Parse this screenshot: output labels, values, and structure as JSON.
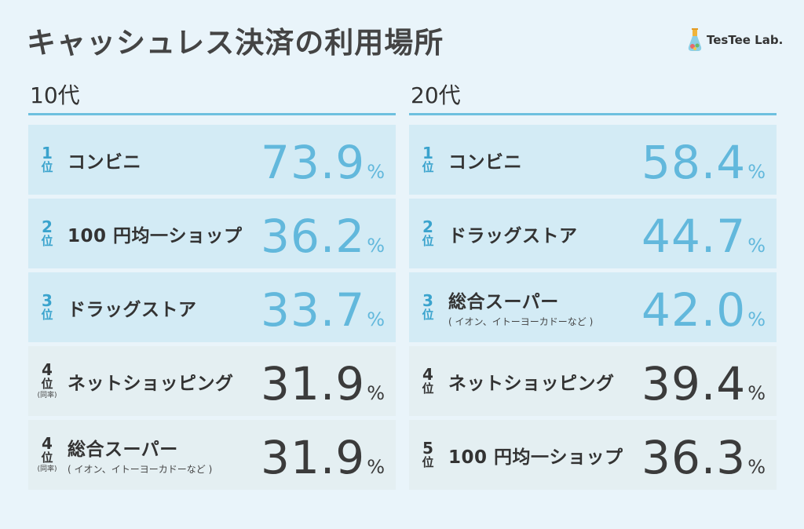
{
  "title": "キャッシュレス決済の利用場所",
  "logo": {
    "text": "TesTee Lab."
  },
  "chart_data": [
    {
      "type": "table",
      "title": "10代",
      "rank_suffix": "位",
      "unit": "%",
      "rows": [
        {
          "rank": "1",
          "label": "コンビニ",
          "value": "73.9",
          "highlight": true
        },
        {
          "rank": "2",
          "label": "100 円均一ショップ",
          "value": "36.2",
          "highlight": true
        },
        {
          "rank": "3",
          "label": "ドラッグストア",
          "value": "33.7",
          "highlight": true
        },
        {
          "rank": "4",
          "note": "(同率)",
          "label": "ネットショッピング",
          "value": "31.9",
          "highlight": false
        },
        {
          "rank": "4",
          "note": "(同率)",
          "label": "総合スーパー",
          "sublabel": "( イオン、イトーヨーカドーなど )",
          "value": "31.9",
          "highlight": false
        }
      ]
    },
    {
      "type": "table",
      "title": "20代",
      "rank_suffix": "位",
      "unit": "%",
      "rows": [
        {
          "rank": "1",
          "label": "コンビニ",
          "value": "58.4",
          "highlight": true
        },
        {
          "rank": "2",
          "label": "ドラッグストア",
          "value": "44.7",
          "highlight": true
        },
        {
          "rank": "3",
          "label": "総合スーパー",
          "sublabel": "( イオン、イトーヨーカドーなど )",
          "value": "42.0",
          "highlight": true
        },
        {
          "rank": "4",
          "label": "ネットショッピング",
          "value": "39.4",
          "highlight": false
        },
        {
          "rank": "5",
          "label": "100 円均一ショップ",
          "value": "36.3",
          "highlight": false
        }
      ]
    }
  ],
  "colors": {
    "background": "#e9f4fa",
    "highlight_row": "#d3ebf5",
    "normal_row": "#e4eff2",
    "accent": "#62b8dc",
    "rule": "#6ec0df",
    "dark_text": "#3b3b3b"
  }
}
